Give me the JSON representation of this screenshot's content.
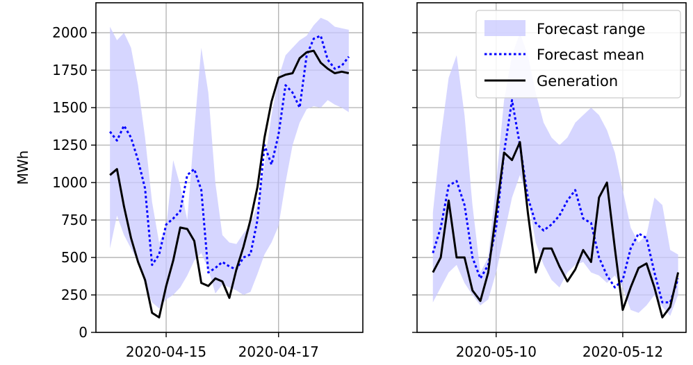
{
  "chart_data": [
    {
      "type": "line",
      "ylabel": "MWh",
      "ylim": [
        0,
        2200
      ],
      "x_range": [
        "2020-04-13T18:00",
        "2020-04-18T12:00"
      ],
      "x_ticks": [
        "2020-04-15",
        "2020-04-17"
      ],
      "y_ticks": [
        "0",
        "250",
        "500",
        "750",
        "1000",
        "1250",
        "1500",
        "1750",
        "2000"
      ],
      "grid": true,
      "series": [
        {
          "name": "Forecast range",
          "kind": "band",
          "color": "#c8c8ff",
          "x": [
            "2020-04-14T00:00",
            "2020-04-14T03:00",
            "2020-04-14T06:00",
            "2020-04-14T09:00",
            "2020-04-14T12:00",
            "2020-04-14T15:00",
            "2020-04-14T18:00",
            "2020-04-14T21:00",
            "2020-04-15T00:00",
            "2020-04-15T03:00",
            "2020-04-15T06:00",
            "2020-04-15T09:00",
            "2020-04-15T12:00",
            "2020-04-15T15:00",
            "2020-04-15T18:00",
            "2020-04-15T21:00",
            "2020-04-16T00:00",
            "2020-04-16T03:00",
            "2020-04-16T06:00",
            "2020-04-16T09:00",
            "2020-04-16T12:00",
            "2020-04-16T15:00",
            "2020-04-16T18:00",
            "2020-04-16T21:00",
            "2020-04-17T00:00",
            "2020-04-17T03:00",
            "2020-04-17T06:00",
            "2020-04-17T09:00",
            "2020-04-17T12:00",
            "2020-04-17T15:00",
            "2020-04-17T18:00",
            "2020-04-17T21:00",
            "2020-04-18T00:00",
            "2020-04-18T03:00",
            "2020-04-18T06:00"
          ],
          "upper": [
            2040,
            1950,
            2000,
            1900,
            1650,
            1300,
            870,
            600,
            700,
            1150,
            980,
            750,
            1350,
            1900,
            1600,
            1000,
            650,
            600,
            590,
            660,
            720,
            850,
            1120,
            1450,
            1700,
            1850,
            1900,
            1950,
            1980,
            2050,
            2100,
            2080,
            2040,
            2030,
            2020
          ],
          "lower": [
            560,
            780,
            650,
            560,
            470,
            320,
            200,
            160,
            220,
            250,
            300,
            380,
            480,
            530,
            420,
            260,
            320,
            300,
            280,
            250,
            270,
            390,
            520,
            600,
            710,
            1000,
            1250,
            1400,
            1490,
            1510,
            1500,
            1550,
            1520,
            1500,
            1470
          ]
        },
        {
          "name": "Forecast mean",
          "kind": "line",
          "style": "dotted",
          "color": "#0000ff",
          "x": [
            "2020-04-14T00:00",
            "2020-04-14T03:00",
            "2020-04-14T06:00",
            "2020-04-14T09:00",
            "2020-04-14T12:00",
            "2020-04-14T15:00",
            "2020-04-14T18:00",
            "2020-04-14T21:00",
            "2020-04-15T00:00",
            "2020-04-15T03:00",
            "2020-04-15T06:00",
            "2020-04-15T09:00",
            "2020-04-15T12:00",
            "2020-04-15T15:00",
            "2020-04-15T18:00",
            "2020-04-15T21:00",
            "2020-04-16T00:00",
            "2020-04-16T03:00",
            "2020-04-16T06:00",
            "2020-04-16T09:00",
            "2020-04-16T12:00",
            "2020-04-16T15:00",
            "2020-04-16T18:00",
            "2020-04-16T21:00",
            "2020-04-17T00:00",
            "2020-04-17T03:00",
            "2020-04-17T06:00",
            "2020-04-17T09:00",
            "2020-04-17T12:00",
            "2020-04-17T15:00",
            "2020-04-17T18:00",
            "2020-04-17T21:00",
            "2020-04-18T00:00",
            "2020-04-18T03:00",
            "2020-04-18T06:00"
          ],
          "values": [
            1340,
            1280,
            1380,
            1300,
            1150,
            960,
            450,
            520,
            720,
            760,
            810,
            1050,
            1090,
            950,
            400,
            430,
            470,
            440,
            420,
            500,
            520,
            750,
            1250,
            1120,
            1320,
            1650,
            1600,
            1500,
            1850,
            1960,
            1980,
            1820,
            1760,
            1780,
            1840
          ]
        },
        {
          "name": "Generation",
          "kind": "line",
          "style": "solid",
          "color": "#000000",
          "x": [
            "2020-04-14T00:00",
            "2020-04-14T03:00",
            "2020-04-14T06:00",
            "2020-04-14T09:00",
            "2020-04-14T12:00",
            "2020-04-14T15:00",
            "2020-04-14T18:00",
            "2020-04-14T21:00",
            "2020-04-15T00:00",
            "2020-04-15T03:00",
            "2020-04-15T06:00",
            "2020-04-15T09:00",
            "2020-04-15T12:00",
            "2020-04-15T15:00",
            "2020-04-15T18:00",
            "2020-04-15T21:00",
            "2020-04-16T00:00",
            "2020-04-16T03:00",
            "2020-04-16T06:00",
            "2020-04-16T09:00",
            "2020-04-16T12:00",
            "2020-04-16T15:00",
            "2020-04-16T18:00",
            "2020-04-16T21:00",
            "2020-04-17T00:00",
            "2020-04-17T03:00",
            "2020-04-17T06:00",
            "2020-04-17T09:00",
            "2020-04-17T12:00",
            "2020-04-17T15:00",
            "2020-04-17T18:00",
            "2020-04-17T21:00",
            "2020-04-18T00:00",
            "2020-04-18T03:00",
            "2020-04-18T06:00"
          ],
          "values": [
            1050,
            1090,
            840,
            630,
            470,
            350,
            130,
            100,
            310,
            480,
            700,
            690,
            610,
            330,
            310,
            360,
            340,
            230,
            420,
            570,
            750,
            970,
            1300,
            1540,
            1700,
            1720,
            1730,
            1830,
            1870,
            1880,
            1800,
            1760,
            1730,
            1740,
            1730
          ]
        }
      ]
    },
    {
      "type": "line",
      "ylabel": "",
      "ylim": [
        0,
        2200
      ],
      "x_range": [
        "2020-05-08T18:00",
        "2020-05-13T00:00"
      ],
      "x_ticks": [
        "2020-05-10",
        "2020-05-12"
      ],
      "legend": {
        "placement": "upper right",
        "entries": [
          "Forecast range",
          "Forecast mean",
          "Generation"
        ]
      },
      "grid": true,
      "series": [
        {
          "name": "Forecast range",
          "kind": "band",
          "color": "#c8c8ff",
          "x": [
            "2020-05-09T00:00",
            "2020-05-09T03:00",
            "2020-05-09T06:00",
            "2020-05-09T09:00",
            "2020-05-09T12:00",
            "2020-05-09T15:00",
            "2020-05-09T18:00",
            "2020-05-09T21:00",
            "2020-05-10T00:00",
            "2020-05-10T03:00",
            "2020-05-10T06:00",
            "2020-05-10T09:00",
            "2020-05-10T12:00",
            "2020-05-10T15:00",
            "2020-05-10T18:00",
            "2020-05-10T21:00",
            "2020-05-11T00:00",
            "2020-05-11T03:00",
            "2020-05-11T06:00",
            "2020-05-11T09:00",
            "2020-05-11T12:00",
            "2020-05-11T15:00",
            "2020-05-11T18:00",
            "2020-05-11T21:00",
            "2020-05-12T00:00",
            "2020-05-12T03:00",
            "2020-05-12T06:00",
            "2020-05-12T09:00",
            "2020-05-12T12:00",
            "2020-05-12T15:00",
            "2020-05-12T18:00",
            "2020-05-12T21:00"
          ],
          "upper": [
            800,
            1300,
            1700,
            1850,
            1450,
            850,
            400,
            500,
            1000,
            1550,
            1850,
            2000,
            1850,
            1600,
            1400,
            1300,
            1250,
            1300,
            1400,
            1450,
            1500,
            1450,
            1350,
            1200,
            950,
            700,
            600,
            650,
            900,
            850,
            550,
            520
          ],
          "lower": [
            200,
            300,
            400,
            450,
            330,
            250,
            180,
            220,
            400,
            650,
            900,
            1050,
            900,
            600,
            450,
            350,
            300,
            400,
            450,
            470,
            400,
            380,
            330,
            380,
            300,
            150,
            130,
            180,
            250,
            170,
            110,
            250
          ]
        },
        {
          "name": "Forecast mean",
          "kind": "line",
          "style": "dotted",
          "color": "#0000ff",
          "x": [
            "2020-05-09T00:00",
            "2020-05-09T03:00",
            "2020-05-09T06:00",
            "2020-05-09T09:00",
            "2020-05-09T12:00",
            "2020-05-09T15:00",
            "2020-05-09T18:00",
            "2020-05-09T21:00",
            "2020-05-10T00:00",
            "2020-05-10T03:00",
            "2020-05-10T06:00",
            "2020-05-10T09:00",
            "2020-05-10T12:00",
            "2020-05-10T15:00",
            "2020-05-10T18:00",
            "2020-05-10T21:00",
            "2020-05-11T00:00",
            "2020-05-11T03:00",
            "2020-05-11T06:00",
            "2020-05-11T09:00",
            "2020-05-11T12:00",
            "2020-05-11T15:00",
            "2020-05-11T18:00",
            "2020-05-11T21:00",
            "2020-05-12T00:00",
            "2020-05-12T03:00",
            "2020-05-12T06:00",
            "2020-05-12T09:00",
            "2020-05-12T12:00",
            "2020-05-12T15:00",
            "2020-05-12T18:00",
            "2020-05-12T21:00"
          ],
          "values": [
            530,
            700,
            980,
            1010,
            850,
            500,
            360,
            450,
            700,
            1200,
            1550,
            1250,
            900,
            730,
            680,
            720,
            780,
            880,
            950,
            760,
            730,
            500,
            380,
            300,
            350,
            560,
            660,
            630,
            400,
            200,
            200,
            360
          ]
        },
        {
          "name": "Generation",
          "kind": "line",
          "style": "solid",
          "color": "#000000",
          "x": [
            "2020-05-09T00:00",
            "2020-05-09T03:00",
            "2020-05-09T06:00",
            "2020-05-09T09:00",
            "2020-05-09T12:00",
            "2020-05-09T15:00",
            "2020-05-09T18:00",
            "2020-05-09T21:00",
            "2020-05-10T00:00",
            "2020-05-10T03:00",
            "2020-05-10T06:00",
            "2020-05-10T09:00",
            "2020-05-10T12:00",
            "2020-05-10T15:00",
            "2020-05-10T18:00",
            "2020-05-10T21:00",
            "2020-05-11T00:00",
            "2020-05-11T03:00",
            "2020-05-11T06:00",
            "2020-05-11T09:00",
            "2020-05-11T12:00",
            "2020-05-11T15:00",
            "2020-05-11T18:00",
            "2020-05-11T21:00",
            "2020-05-12T00:00",
            "2020-05-12T03:00",
            "2020-05-12T06:00",
            "2020-05-12T09:00",
            "2020-05-12T12:00",
            "2020-05-12T15:00",
            "2020-05-12T18:00",
            "2020-05-12T21:00"
          ],
          "values": [
            400,
            500,
            880,
            500,
            500,
            280,
            210,
            400,
            800,
            1200,
            1150,
            1270,
            800,
            400,
            560,
            560,
            440,
            340,
            420,
            550,
            470,
            900,
            1000,
            560,
            150,
            300,
            430,
            460,
            300,
            100,
            170,
            400
          ]
        }
      ]
    }
  ]
}
